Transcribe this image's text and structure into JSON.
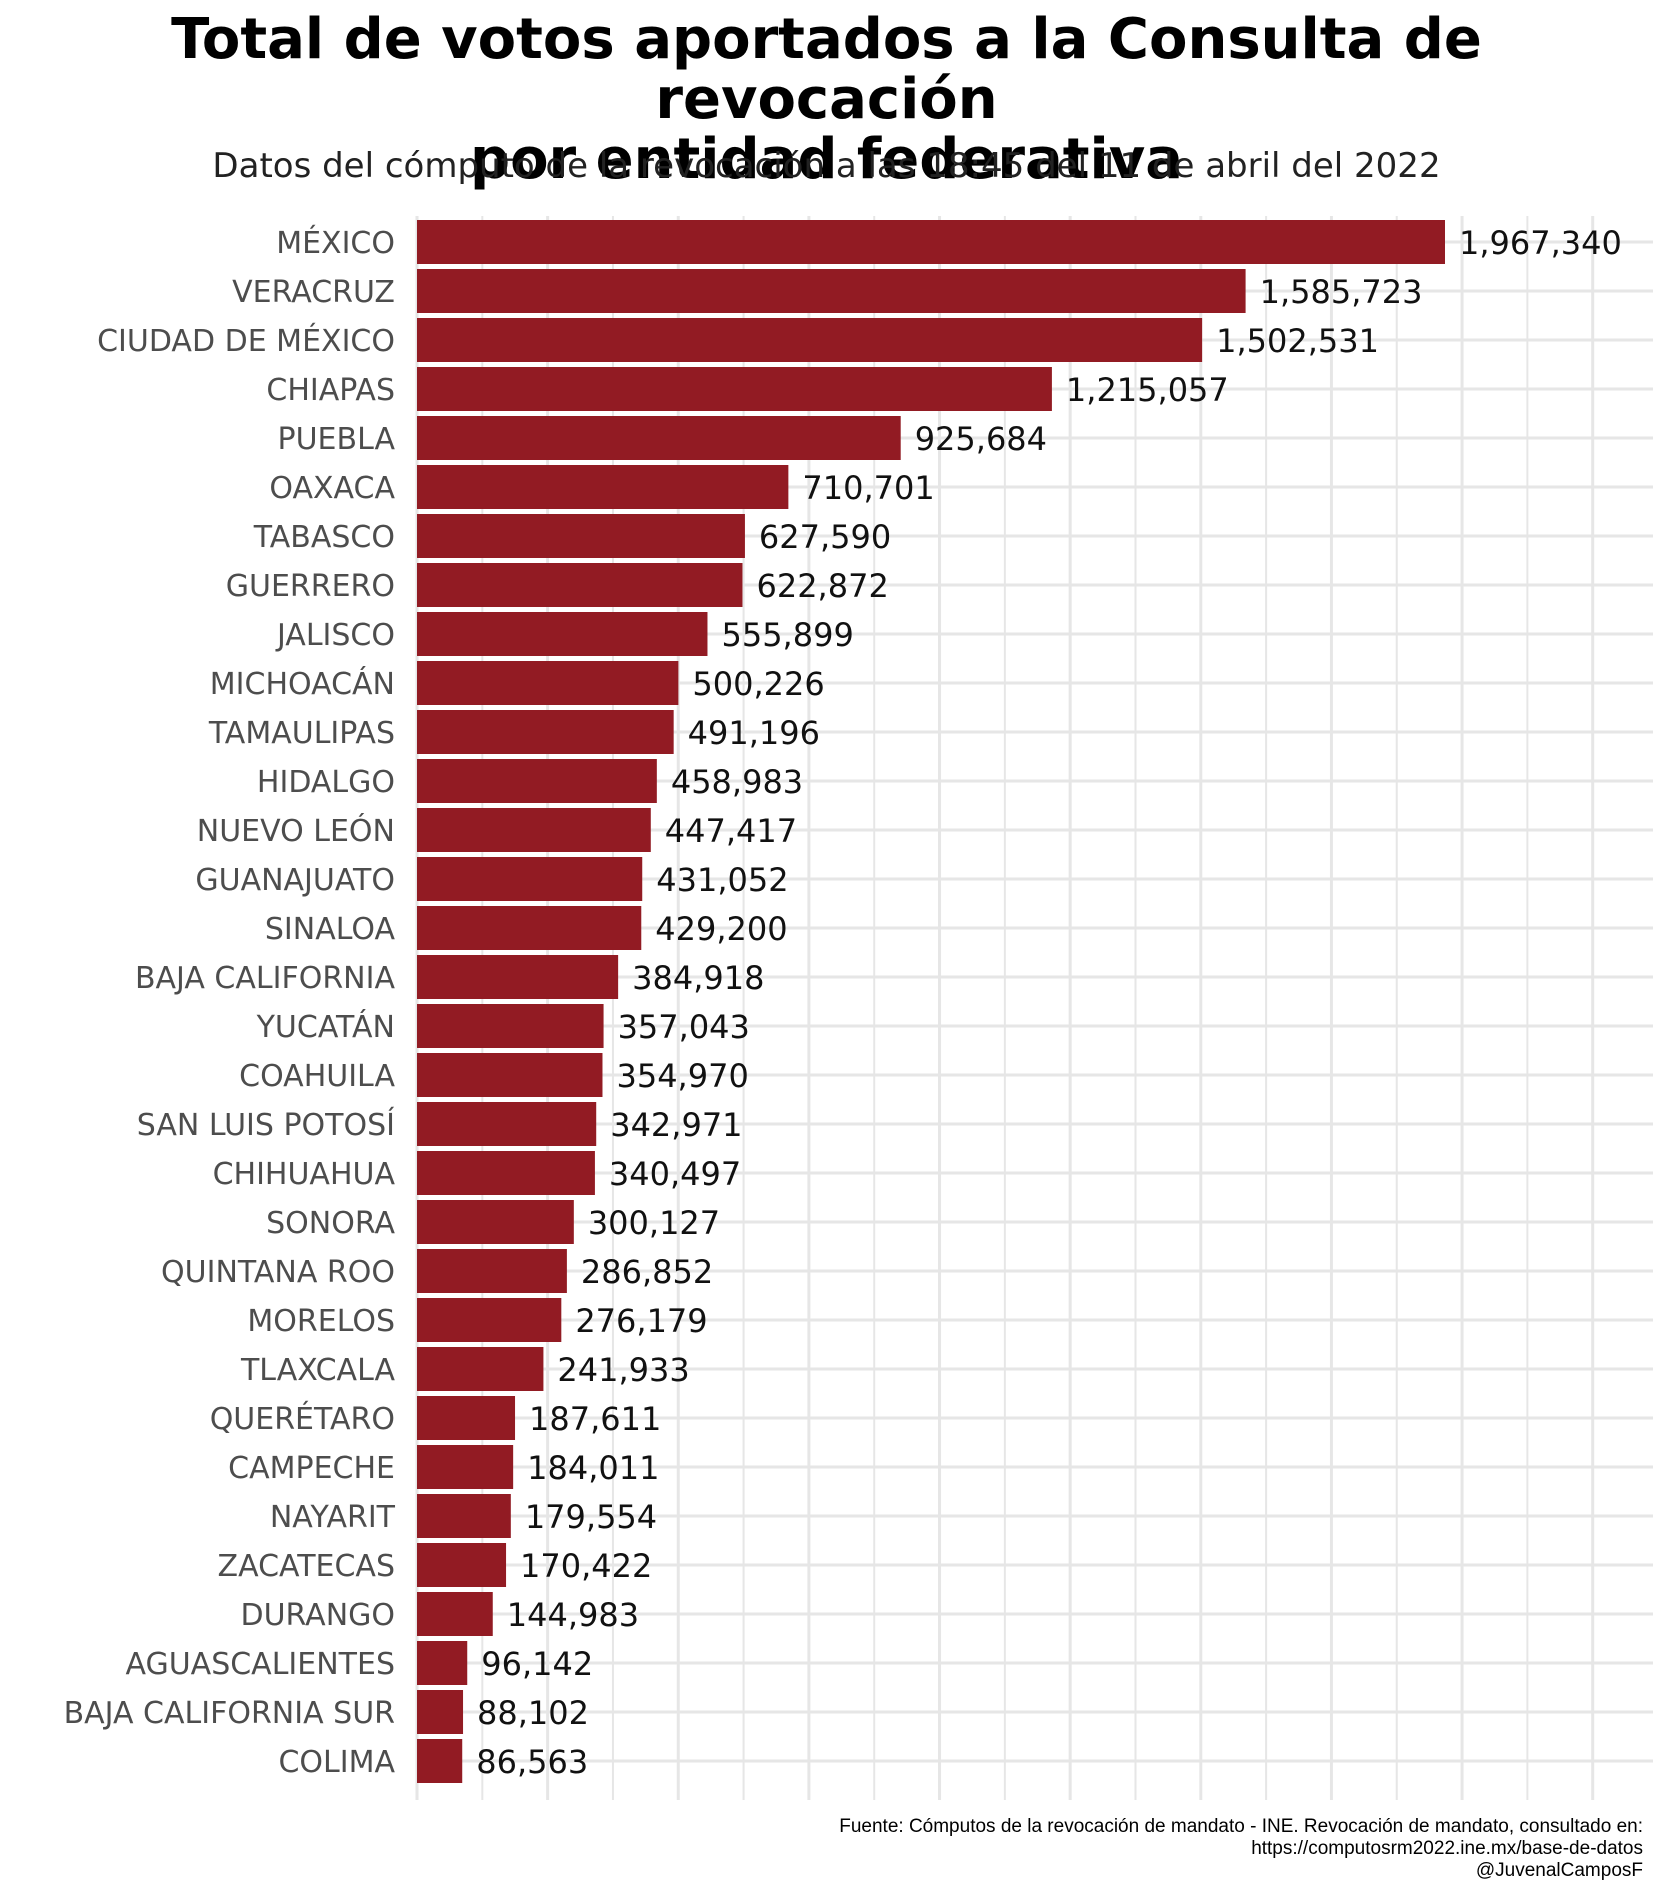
{
  "chart_data": {
    "type": "bar",
    "orientation": "horizontal",
    "title_line1": "Total de votos aportados a la Consulta de revocación",
    "title_line2": "por entidad federativa",
    "subtitle": "Datos del cómputo de la revocación a las 18:45 del 11 de abril del 2022",
    "xlabel": "",
    "ylabel": "",
    "xlim": [
      0,
      2300000
    ],
    "grid": true,
    "bar_color": "#921B23",
    "categories": [
      "MÉXICO",
      "VERACRUZ",
      "CIUDAD DE MÉXICO",
      "CHIAPAS",
      "PUEBLA",
      "OAXACA",
      "TABASCO",
      "GUERRERO",
      "JALISCO",
      "MICHOACÁN",
      "TAMAULIPAS",
      "HIDALGO",
      "NUEVO LEÓN",
      "GUANAJUATO",
      "SINALOA",
      "BAJA CALIFORNIA",
      "YUCATÁN",
      "COAHUILA",
      "SAN LUIS POTOSÍ",
      "CHIHUAHUA",
      "SONORA",
      "QUINTANA ROO",
      "MORELOS",
      "TLAXCALA",
      "QUERÉTARO",
      "CAMPECHE",
      "NAYARIT",
      "ZACATECAS",
      "DURANGO",
      "AGUASCALIENTES",
      "BAJA CALIFORNIA SUR",
      "COLIMA"
    ],
    "values": [
      1967340,
      1585723,
      1502531,
      1215057,
      925684,
      710701,
      627590,
      622872,
      555899,
      500226,
      491196,
      458983,
      447417,
      431052,
      429200,
      384918,
      357043,
      354970,
      342971,
      340497,
      300127,
      286852,
      276179,
      241933,
      187611,
      184011,
      179554,
      170422,
      144983,
      96142,
      88102,
      86563
    ],
    "value_labels": [
      "1,967,340",
      "1,585,723",
      "1,502,531",
      "1,215,057",
      "925,684",
      "710,701",
      "627,590",
      "622,872",
      "555,899",
      "500,226",
      "491,196",
      "458,983",
      "447,417",
      "431,052",
      "429,200",
      "384,918",
      "357,043",
      "354,970",
      "342,971",
      "340,497",
      "300,127",
      "286,852",
      "276,179",
      "241,933",
      "187,611",
      "184,011",
      "179,554",
      "170,422",
      "144,983",
      "96,142",
      "88,102",
      "86,563"
    ]
  },
  "caption": {
    "line1": "Fuente: Cómputos de la revocación de mandato - INE. Revocación de mandato, consultado en:",
    "line2": "https://computosrm2022.ine.mx/base-de-datos",
    "line3": "@JuvenalCamposF"
  }
}
